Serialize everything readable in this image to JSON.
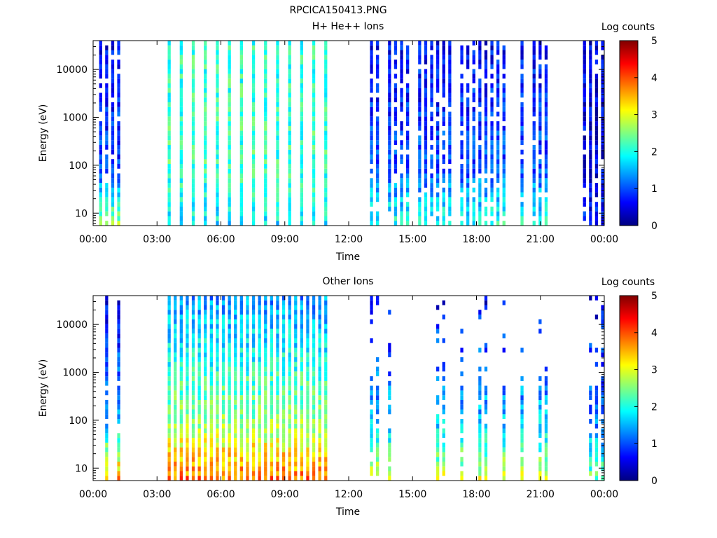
{
  "title": "RPCICA150413.PNG",
  "x_tick_labels": [
    "00:00",
    "03:00",
    "06:00",
    "09:00",
    "12:00",
    "15:00",
    "18:00",
    "21:00",
    "00:00"
  ],
  "y_tick_labels": [
    "10",
    "100",
    "1000",
    "10000"
  ],
  "colorbar": {
    "label": "Log counts",
    "tick_labels": [
      "0",
      "1",
      "2",
      "3",
      "4",
      "5"
    ],
    "range": [
      0,
      5
    ],
    "colormap": [
      "#000080",
      "#0000ff",
      "#0080ff",
      "#00ffff",
      "#80ff80",
      "#ffff00",
      "#ff8000",
      "#ff0000",
      "#800000"
    ]
  },
  "chart_data": [
    {
      "type": "heatmap",
      "title": "H+ He++ Ions",
      "xlabel": "Time",
      "ylabel": "Energy (eV)",
      "x_range_hours": [
        0,
        24
      ],
      "y_range_eV": [
        5.5,
        40000
      ],
      "y_scale": "log",
      "z_label": "Log counts",
      "z_range": [
        0,
        5
      ],
      "intervals": [
        {
          "start_h": 0.0,
          "end_h": 1.4,
          "low_energy_level": 2.6,
          "mid_energy_level": 0.9,
          "high_energy_level": 0.6,
          "density": 0.6
        },
        {
          "start_h": 3.5,
          "end_h": 11.0,
          "low_energy_level": 1.8,
          "mid_energy_level": 2.2,
          "high_energy_level": 2.1,
          "density": 1.0
        },
        {
          "start_h": 13.0,
          "end_h": 21.4,
          "low_energy_level": 2.0,
          "mid_energy_level": 1.0,
          "high_energy_level": 0.6,
          "density": 0.75
        },
        {
          "start_h": 23.0,
          "end_h": 23.9,
          "low_energy_level": 0.7,
          "mid_energy_level": 0.5,
          "high_energy_level": 0.5,
          "density": 0.9
        }
      ]
    },
    {
      "type": "heatmap",
      "title": "Other Ions",
      "xlabel": "Time",
      "ylabel": "Energy (eV)",
      "x_range_hours": [
        0,
        24
      ],
      "y_range_eV": [
        5.5,
        40000
      ],
      "y_scale": "log",
      "z_label": "Log counts",
      "z_range": [
        0,
        5
      ],
      "intervals": [
        {
          "start_h": 0.0,
          "end_h": 1.4,
          "low_energy_level": 3.6,
          "mid_energy_level": 1.5,
          "high_energy_level": 0.5,
          "density": 0.35
        },
        {
          "start_h": 3.5,
          "end_h": 11.0,
          "low_energy_level": 3.8,
          "mid_energy_level": 2.6,
          "high_energy_level": 1.3,
          "density": 1.0
        },
        {
          "start_h": 13.0,
          "end_h": 21.4,
          "low_energy_level": 2.9,
          "mid_energy_level": 1.6,
          "high_energy_level": 0.5,
          "density": 0.45
        },
        {
          "start_h": 23.0,
          "end_h": 23.9,
          "low_energy_level": 2.4,
          "mid_energy_level": 1.2,
          "high_energy_level": 0.5,
          "density": 0.5
        }
      ]
    }
  ]
}
